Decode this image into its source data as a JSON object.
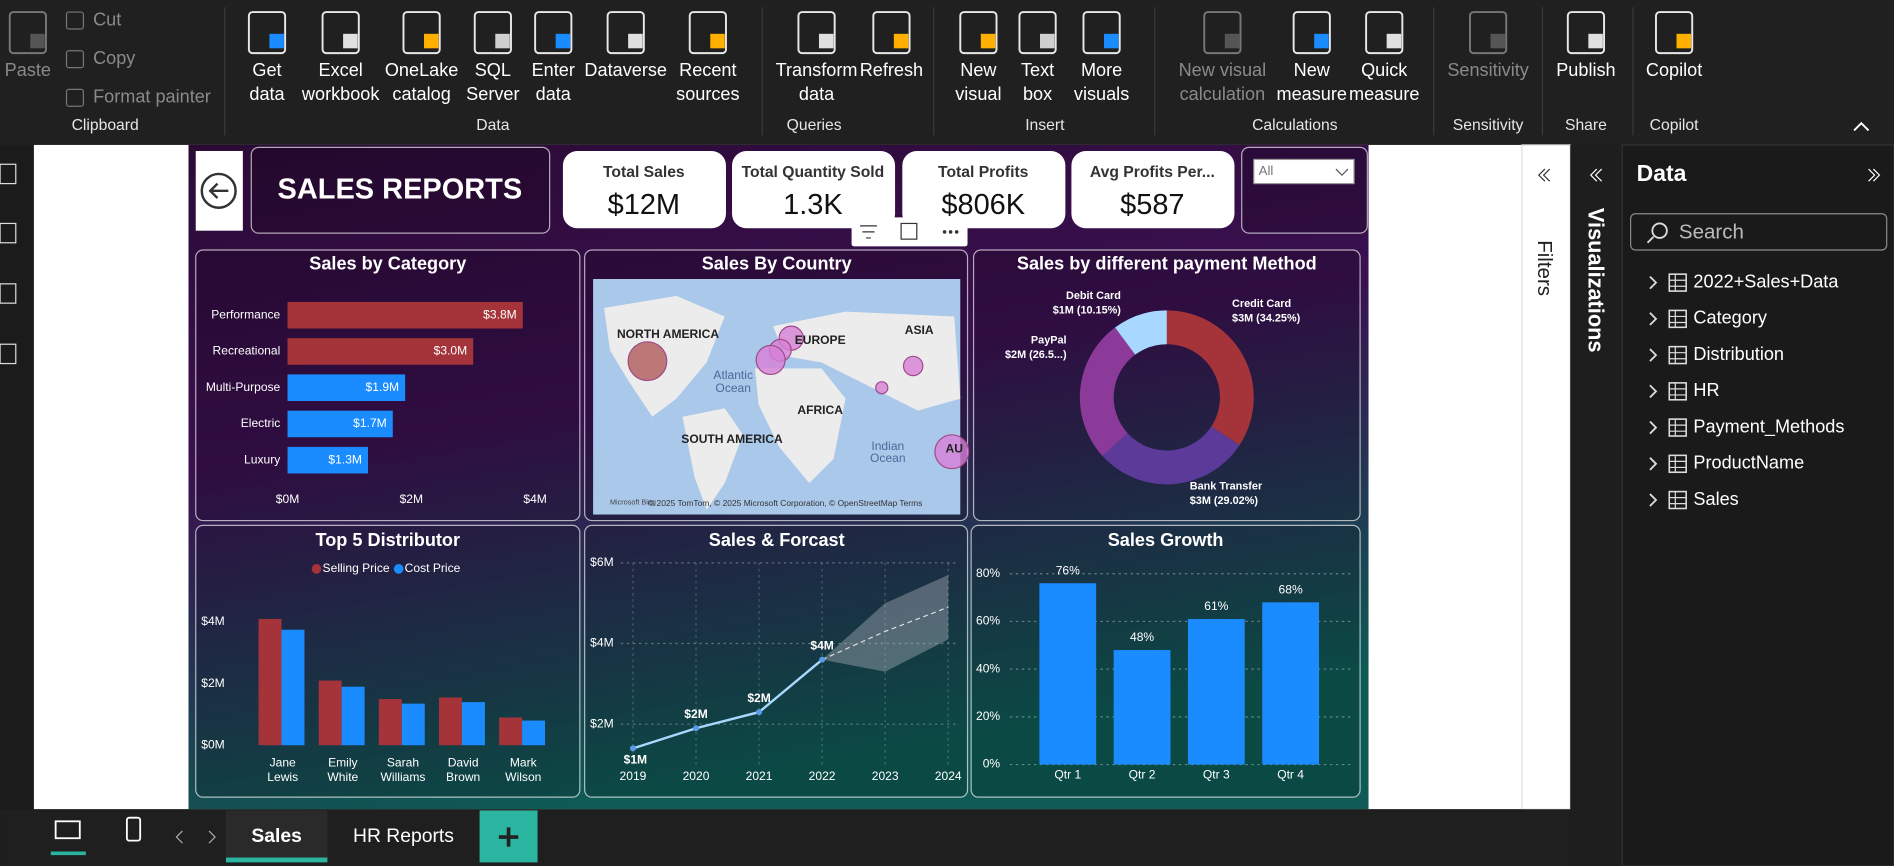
{
  "ribbon": {
    "groups": [
      {
        "label": "Clipboard",
        "items": [
          {
            "lines": [
              "Paste"
            ]
          },
          {
            "lines": [
              "Cut"
            ]
          },
          {
            "lines": [
              "Copy"
            ]
          },
          {
            "lines": [
              "Format painter"
            ]
          }
        ]
      },
      {
        "label": "Data",
        "items": [
          {
            "lines": [
              "Get",
              "data"
            ]
          },
          {
            "lines": [
              "Excel",
              "workbook"
            ]
          },
          {
            "lines": [
              "OneLake",
              "catalog"
            ]
          },
          {
            "lines": [
              "SQL",
              "Server"
            ]
          },
          {
            "lines": [
              "Enter",
              "data"
            ]
          },
          {
            "lines": [
              "Dataverse"
            ]
          },
          {
            "lines": [
              "Recent",
              "sources"
            ]
          }
        ]
      },
      {
        "label": "Queries",
        "items": [
          {
            "lines": [
              "Transform",
              "data"
            ]
          },
          {
            "lines": [
              "Refresh"
            ]
          }
        ]
      },
      {
        "label": "Insert",
        "items": [
          {
            "lines": [
              "New",
              "visual"
            ]
          },
          {
            "lines": [
              "Text",
              "box"
            ]
          },
          {
            "lines": [
              "More",
              "visuals"
            ]
          }
        ]
      },
      {
        "label": "Calculations",
        "items": [
          {
            "lines": [
              "New visual",
              "calculation"
            ]
          },
          {
            "lines": [
              "New",
              "measure"
            ]
          },
          {
            "lines": [
              "Quick",
              "measure"
            ]
          }
        ]
      },
      {
        "label": "Sensitivity",
        "items": [
          {
            "lines": [
              "Sensitivity"
            ]
          }
        ]
      },
      {
        "label": "Share",
        "items": [
          {
            "lines": [
              "Publish"
            ]
          }
        ]
      },
      {
        "label": "Copilot",
        "items": [
          {
            "lines": [
              "Copilot"
            ]
          }
        ]
      }
    ]
  },
  "report": {
    "title": "SALES REPORTS",
    "cards": [
      {
        "label": "Total Sales",
        "value": "$12M"
      },
      {
        "label": "Total Quantity Sold",
        "value": "1.3K"
      },
      {
        "label": "Total Profits",
        "value": "$806K"
      },
      {
        "label": "Avg Profits Per...",
        "value": "$587"
      }
    ],
    "slicer": "All",
    "sales_by_category": {
      "type": "bar",
      "orientation": "horizontal",
      "title": "Sales by Category",
      "categories": [
        "Performance",
        "Recreational",
        "Multi-Purpose",
        "Electric",
        "Luxury"
      ],
      "values": [
        3.8,
        3.0,
        1.9,
        1.7,
        1.3
      ],
      "value_labels": [
        "$3.8M",
        "$3.0M",
        "$1.9M",
        "$1.7M",
        "$1.3M"
      ],
      "colors": [
        "#a4343a",
        "#a4343a",
        "#1a8cff",
        "#1a8cff",
        "#1a8cff"
      ],
      "xlim": [
        0,
        4
      ],
      "xticks": [
        {
          "value": 0,
          "label": "$0M"
        },
        {
          "value": 2,
          "label": "$2M"
        },
        {
          "value": 4,
          "label": "$4M"
        }
      ]
    },
    "sales_by_country": {
      "type": "map",
      "title": "Sales By Country",
      "labels": [
        "NORTH AMERICA",
        "EUROPE",
        "ASIA",
        "AFRICA",
        "SOUTH AMERICA",
        "Atlantic",
        "Ocean",
        "Indian",
        "Ocean",
        "AU"
      ],
      "attribution": "© 2025 TomTom, © 2025 Microsoft Corporation, © OpenStreetMap  Terms",
      "logo": "Microsoft Bing"
    },
    "payment_method": {
      "type": "donut",
      "title": "Sales by different payment Method",
      "categories": [
        "Credit Card",
        "Bank Transfer",
        "PayPal",
        "Debit Card"
      ],
      "values": [
        34.25,
        29.02,
        26.58,
        10.15
      ],
      "value_labels": [
        "$3M (34.25%)",
        "$3M (29.02%)",
        "$2M (26.5...)",
        "$1M (10.15%)"
      ],
      "colors": [
        "#a4343a",
        "#5b3a9a",
        "#8b3a9a",
        "#a8d8ff"
      ]
    },
    "top_distributor": {
      "type": "grouped_bar",
      "title": "Top 5 Distributor",
      "categories": [
        "Jane Lewis",
        "Emily White",
        "Sarah Williams",
        "David Brown",
        "Mark Wilson"
      ],
      "series": [
        {
          "name": "Selling Price",
          "color": "#a4343a",
          "values": [
            4.1,
            2.1,
            1.5,
            1.55,
            0.9
          ]
        },
        {
          "name": "Cost Price",
          "color": "#1a8cff",
          "values": [
            3.75,
            1.9,
            1.35,
            1.4,
            0.8
          ]
        }
      ],
      "ylim": [
        0,
        4.5
      ],
      "yticks": [
        {
          "value": 0,
          "label": "$0M"
        },
        {
          "value": 2,
          "label": "$2M"
        },
        {
          "value": 4,
          "label": "$4M"
        }
      ]
    },
    "sales_forecast": {
      "type": "line",
      "title": "Sales & Forcast",
      "x": [
        2019,
        2020,
        2021,
        2022,
        2023,
        2024
      ],
      "values": [
        1.4,
        1.9,
        2.3,
        3.6,
        null,
        null
      ],
      "value_labels": [
        "$1M",
        "$2M",
        "$2M",
        "$4M",
        null,
        null
      ],
      "forecast": [
        null,
        null,
        null,
        3.6,
        4.3,
        4.9
      ],
      "upper": [
        null,
        null,
        null,
        3.6,
        5.0,
        5.7
      ],
      "lower": [
        null,
        null,
        null,
        3.6,
        3.3,
        4.1
      ],
      "color": "#a8d8ff",
      "xlim": [
        2019,
        2024
      ],
      "xticks": [
        2019,
        2020,
        2021,
        2022,
        2023,
        2024
      ],
      "ylim": [
        1,
        6
      ],
      "yticks": [
        {
          "value": 2,
          "label": "$2M"
        },
        {
          "value": 4,
          "label": "$4M"
        },
        {
          "value": 6,
          "label": "$6M"
        }
      ]
    },
    "sales_growth": {
      "type": "bar",
      "title": "Sales Growth",
      "categories": [
        "Qtr 1",
        "Qtr 2",
        "Qtr 3",
        "Qtr 4"
      ],
      "values": [
        76,
        48,
        61,
        68
      ],
      "value_labels": [
        "76%",
        "48%",
        "61%",
        "68%"
      ],
      "color": "#1a8cff",
      "ylim": [
        0,
        80
      ],
      "yticks": [
        {
          "value": 0,
          "label": "0%"
        },
        {
          "value": 20,
          "label": "20%"
        },
        {
          "value": 40,
          "label": "40%"
        },
        {
          "value": 60,
          "label": "60%"
        },
        {
          "value": 80,
          "label": "80%"
        }
      ],
      "grid": true
    }
  },
  "panes": {
    "filters": "Filters",
    "visualizations": "Visualizations"
  },
  "data_pane": {
    "title": "Data",
    "search": "Search",
    "fields": [
      "2022+Sales+Data",
      "Category",
      "Distribution",
      "HR",
      "Payment_Methods",
      "ProductName",
      "Sales"
    ]
  },
  "tabs": [
    "Sales",
    "HR Reports"
  ]
}
